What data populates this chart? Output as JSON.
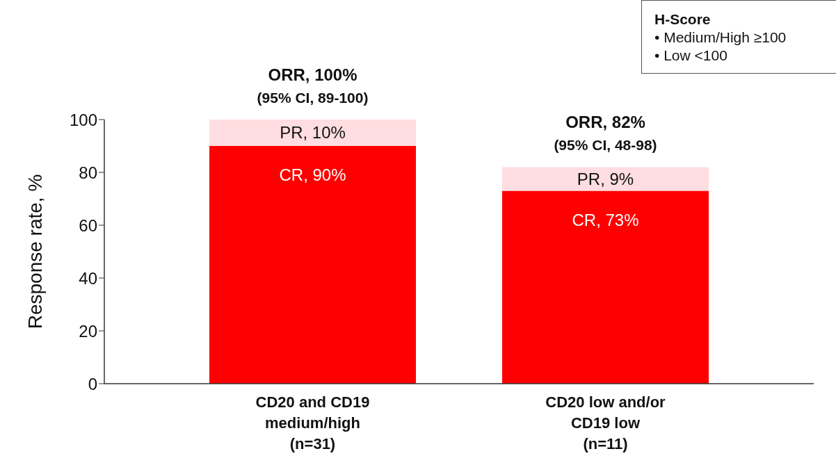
{
  "chart_data": {
    "type": "bar",
    "stacked": true,
    "ylabel": "Response rate, %",
    "categories": [
      "CD20 and CD19\nmedium/high\n(n=31)",
      "CD20 low and/or\nCD19 low\n(n=11)"
    ],
    "series": [
      {
        "color": "#ff0000",
        "values": [
          90,
          73
        ],
        "value_labels": [
          "CR, 90%",
          "CR, 73%"
        ]
      },
      {
        "color": "#ffdde0",
        "values": [
          10,
          9
        ],
        "value_labels": [
          "PR, 10%",
          "PR, 9%"
        ]
      }
    ],
    "totals": [
      "ORR, 100%",
      "ORR, 82%"
    ],
    "annotations": [
      {
        "text": "(95% CI, 89-100)",
        "x": "CD20 and CD19\nmedium/high\n(n=31)",
        "y": 100
      },
      {
        "text": "(95% CI, 48-98)",
        "x": "CD20 low and/or\nCD19 low\n(n=11)",
        "y": 82
      },
      "H-Score",
      "• Medium/High ≥100",
      "• Low <100"
    ],
    "ylim": [
      0,
      100
    ],
    "yticks": [
      0,
      20,
      40,
      60,
      80,
      100
    ],
    "grid": false,
    "legend": false
  }
}
